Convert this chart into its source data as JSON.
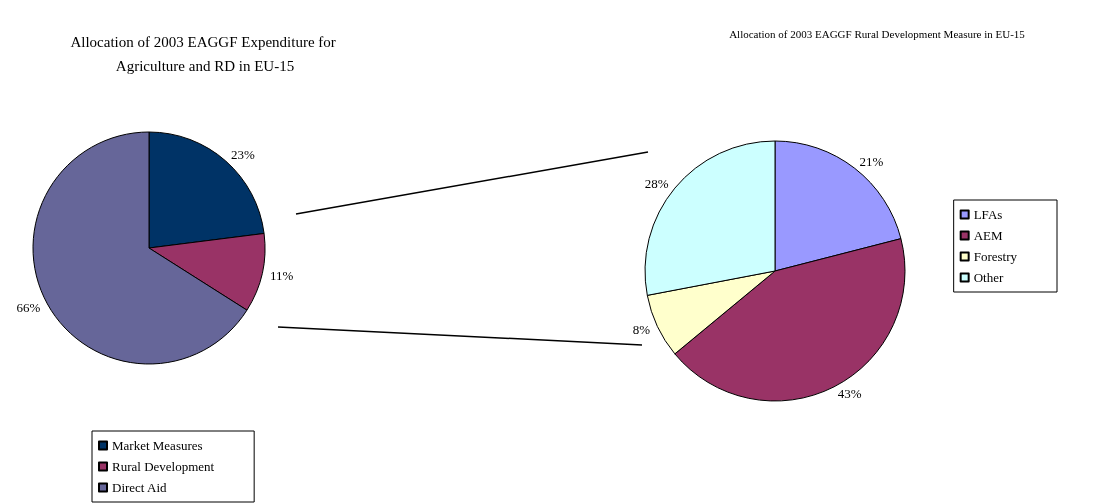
{
  "chart_data": [
    {
      "type": "pie",
      "title": "Allocation of 2003 EAGGF Expenditure for Agriculture and RD in EU-15",
      "categories": [
        "Market Measures",
        "Rural Development",
        "Direct Aid"
      ],
      "values": [
        23,
        11,
        66
      ],
      "colors": [
        "#003366",
        "#993366",
        "#666699"
      ],
      "value_labels": [
        "23%",
        "11%",
        "66%"
      ],
      "legend": "bottom left"
    },
    {
      "type": "pie",
      "title": "Allocation of 2003 EAGGF Rural Development Measure in EU-15",
      "categories": [
        "LFAs",
        "AEM",
        "Forestry",
        "Other"
      ],
      "values": [
        21,
        43,
        8,
        28
      ],
      "colors": [
        "#9999ff",
        "#993366",
        "#ffffcc",
        "#ccffff"
      ],
      "value_labels": [
        "21%",
        "43%",
        "8%",
        "28%"
      ],
      "legend": "right"
    }
  ]
}
